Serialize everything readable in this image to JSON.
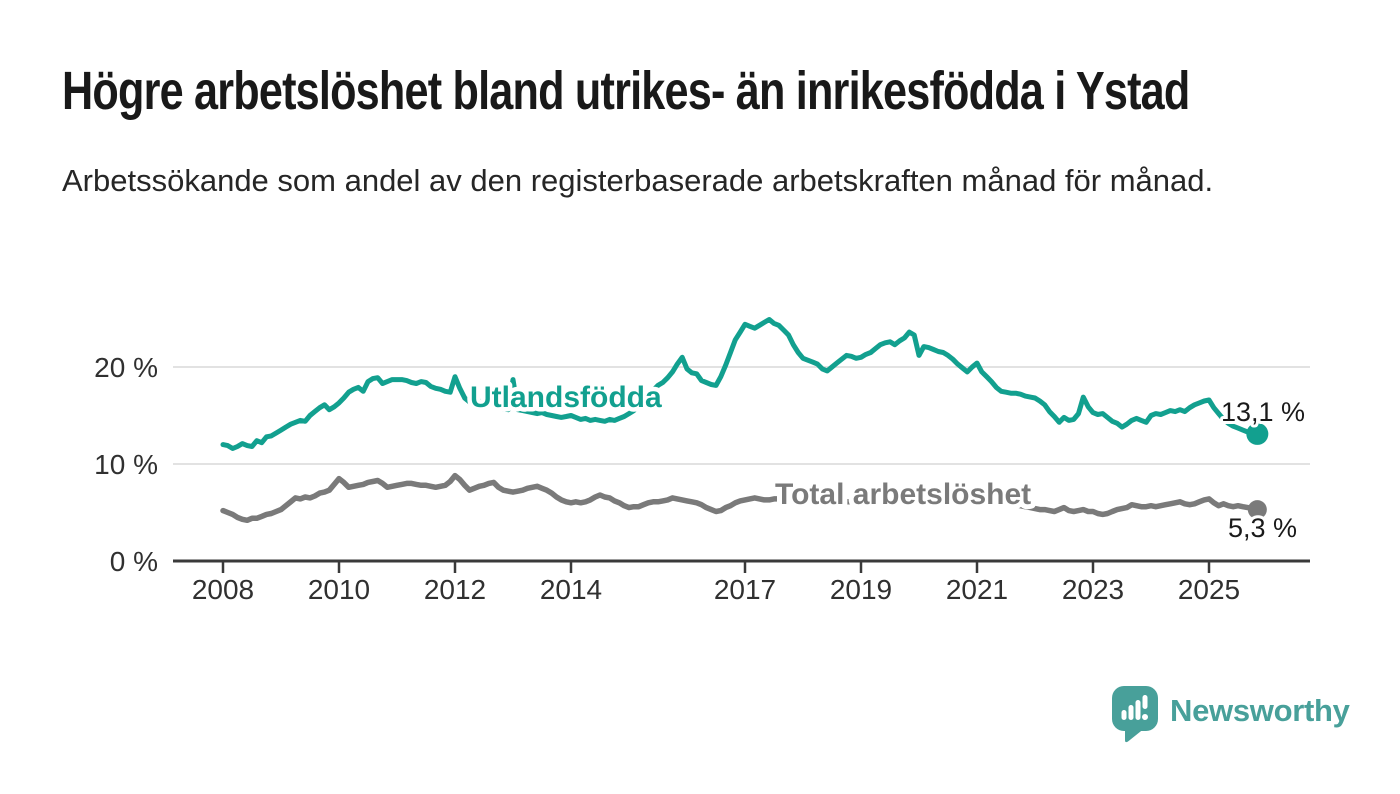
{
  "header": {
    "title": "Högre arbetslöshet bland utrikes- än inrikesfödda i Ystad",
    "subtitle": "Arbetssökande som andel av den registerbaserade arbetskraften månad för månad."
  },
  "chart_data": {
    "type": "line",
    "title": "Högre arbetslöshet bland utrikes- än inrikesfödda i Ystad",
    "subtitle": "Arbetssökande som andel av den registerbaserade arbetskraften månad för månad.",
    "unit": "%",
    "frequency": "monthly",
    "x_start": "2008-01",
    "x_end": "2025-11",
    "xlim": [
      2007.15,
      2026.75
    ],
    "ylim": [
      0,
      26
    ],
    "grid": "horizontal",
    "legend_position": "inline-labels",
    "x_tick_years": [
      2008,
      2010,
      2012,
      2014,
      2017,
      2019,
      2021,
      2023,
      2025
    ],
    "x_tick_labels": [
      "2008",
      "2010",
      "2012",
      "2014",
      "2017",
      "2019",
      "2021",
      "2023",
      "2025"
    ],
    "y_ticks": [
      {
        "value": 0,
        "label": "0 %"
      },
      {
        "value": 10,
        "label": "10 %"
      },
      {
        "value": 20,
        "label": "20 %"
      }
    ],
    "series": [
      {
        "name": "Utlandsfödda",
        "color": "#12a08f",
        "end_value": 13.1,
        "end_value_label": "13,1 %",
        "values": [
          12.0,
          11.9,
          11.6,
          11.8,
          12.1,
          11.9,
          11.8,
          12.4,
          12.2,
          12.8,
          12.9,
          13.2,
          13.5,
          13.8,
          14.1,
          14.3,
          14.5,
          14.4,
          15.0,
          15.4,
          15.8,
          16.1,
          15.6,
          15.9,
          16.3,
          16.8,
          17.4,
          17.7,
          17.9,
          17.5,
          18.5,
          18.8,
          18.9,
          18.3,
          18.5,
          18.7,
          18.7,
          18.7,
          18.6,
          18.4,
          18.3,
          18.5,
          18.4,
          18.0,
          17.8,
          17.7,
          17.5,
          17.4,
          19.0,
          17.8,
          16.8,
          16.4,
          16.2,
          16.5,
          16.3,
          16.1,
          16.2,
          15.9,
          15.7,
          15.6,
          18.7,
          15.6,
          15.5,
          15.4,
          15.3,
          15.2,
          15.3,
          15.1,
          15.0,
          14.9,
          14.8,
          14.9,
          15.0,
          14.8,
          14.6,
          14.7,
          14.5,
          14.6,
          14.5,
          14.4,
          14.6,
          14.5,
          14.7,
          14.9,
          15.2,
          15.5,
          16.0,
          16.6,
          17.1,
          17.6,
          18.1,
          18.4,
          18.9,
          19.5,
          20.3,
          21.0,
          19.8,
          19.4,
          19.3,
          18.6,
          18.4,
          18.2,
          18.1,
          19.0,
          20.2,
          21.5,
          22.8,
          23.6,
          24.4,
          24.2,
          24.0,
          24.3,
          24.6,
          24.9,
          24.5,
          24.3,
          23.8,
          23.3,
          22.3,
          21.5,
          20.9,
          20.7,
          20.5,
          20.3,
          19.8,
          19.6,
          20.0,
          20.4,
          20.8,
          21.2,
          21.1,
          20.9,
          21.0,
          21.3,
          21.5,
          21.9,
          22.3,
          22.5,
          22.6,
          22.3,
          22.7,
          23.0,
          23.6,
          23.3,
          21.2,
          22.1,
          22.0,
          21.8,
          21.6,
          21.5,
          21.2,
          20.8,
          20.3,
          19.9,
          19.5,
          20.0,
          20.4,
          19.5,
          19.0,
          18.5,
          17.9,
          17.5,
          17.4,
          17.3,
          17.3,
          17.2,
          17.0,
          16.9,
          16.8,
          16.5,
          16.1,
          15.4,
          14.9,
          14.3,
          14.8,
          14.5,
          14.6,
          15.2,
          16.9,
          15.9,
          15.3,
          15.1,
          15.2,
          14.8,
          14.4,
          14.2,
          13.8,
          14.1,
          14.5,
          14.7,
          14.5,
          14.3,
          15.0,
          15.2,
          15.1,
          15.3,
          15.5,
          15.4,
          15.6,
          15.4,
          15.8,
          16.1,
          16.3,
          16.5,
          16.6,
          15.8,
          15.2,
          14.6,
          14.2,
          13.9,
          13.7,
          13.5,
          13.3,
          13.2,
          13.1
        ]
      },
      {
        "name": "Total arbetslöshet",
        "color": "#7a7a7a",
        "end_value": 5.3,
        "end_value_label": "5,3 %",
        "values": [
          5.2,
          5.0,
          4.8,
          4.5,
          4.3,
          4.2,
          4.4,
          4.4,
          4.6,
          4.8,
          4.9,
          5.1,
          5.3,
          5.7,
          6.1,
          6.5,
          6.4,
          6.6,
          6.5,
          6.7,
          7.0,
          7.1,
          7.3,
          7.9,
          8.5,
          8.1,
          7.6,
          7.7,
          7.8,
          7.9,
          8.1,
          8.2,
          8.3,
          8.0,
          7.6,
          7.7,
          7.8,
          7.9,
          8.0,
          8.0,
          7.9,
          7.8,
          7.8,
          7.7,
          7.6,
          7.7,
          7.8,
          8.2,
          8.8,
          8.4,
          7.8,
          7.3,
          7.5,
          7.7,
          7.8,
          8.0,
          8.1,
          7.6,
          7.3,
          7.2,
          7.1,
          7.2,
          7.3,
          7.5,
          7.6,
          7.7,
          7.5,
          7.3,
          7.0,
          6.6,
          6.3,
          6.1,
          6.0,
          6.1,
          6.0,
          6.1,
          6.3,
          6.6,
          6.8,
          6.6,
          6.5,
          6.2,
          6.0,
          5.7,
          5.5,
          5.6,
          5.6,
          5.8,
          6.0,
          6.1,
          6.1,
          6.2,
          6.3,
          6.5,
          6.4,
          6.3,
          6.2,
          6.1,
          6.0,
          5.8,
          5.5,
          5.3,
          5.1,
          5.2,
          5.5,
          5.7,
          6.0,
          6.2,
          6.3,
          6.4,
          6.5,
          6.4,
          6.3,
          6.3,
          6.4,
          6.4,
          6.3,
          6.3,
          6.2,
          6.2,
          6.1,
          6.1,
          6.0,
          6.0,
          5.9,
          5.9,
          5.9,
          6.0,
          6.0,
          6.1,
          6.1,
          6.0,
          6.0,
          6.0,
          6.1,
          6.1,
          6.2,
          6.2,
          6.3,
          6.3,
          6.4,
          6.5,
          6.6,
          6.6,
          6.7,
          6.9,
          7.2,
          7.4,
          7.5,
          7.5,
          7.4,
          7.3,
          7.2,
          7.0,
          6.9,
          6.8,
          6.7,
          6.6,
          6.5,
          6.4,
          6.2,
          6.1,
          6.0,
          5.9,
          5.8,
          5.7,
          5.6,
          5.5,
          5.4,
          5.3,
          5.3,
          5.2,
          5.1,
          5.3,
          5.5,
          5.2,
          5.1,
          5.2,
          5.3,
          5.1,
          5.1,
          4.9,
          4.8,
          4.9,
          5.1,
          5.3,
          5.4,
          5.5,
          5.8,
          5.7,
          5.6,
          5.6,
          5.7,
          5.6,
          5.7,
          5.8,
          5.9,
          6.0,
          6.1,
          5.9,
          5.8,
          5.9,
          6.1,
          6.3,
          6.4,
          6.0,
          5.7,
          5.9,
          5.7,
          5.6,
          5.7,
          5.6,
          5.5,
          5.4,
          5.3
        ]
      }
    ]
  },
  "footer": {
    "brand": "Newsworthy"
  },
  "colors": {
    "accent_teal": "#12a08f",
    "logo_teal": "#48a09a",
    "line_gray": "#7a7a7a",
    "axis": "#3a3a3a",
    "grid": "#d9d9d9",
    "value_label": "#1a1a1a"
  }
}
